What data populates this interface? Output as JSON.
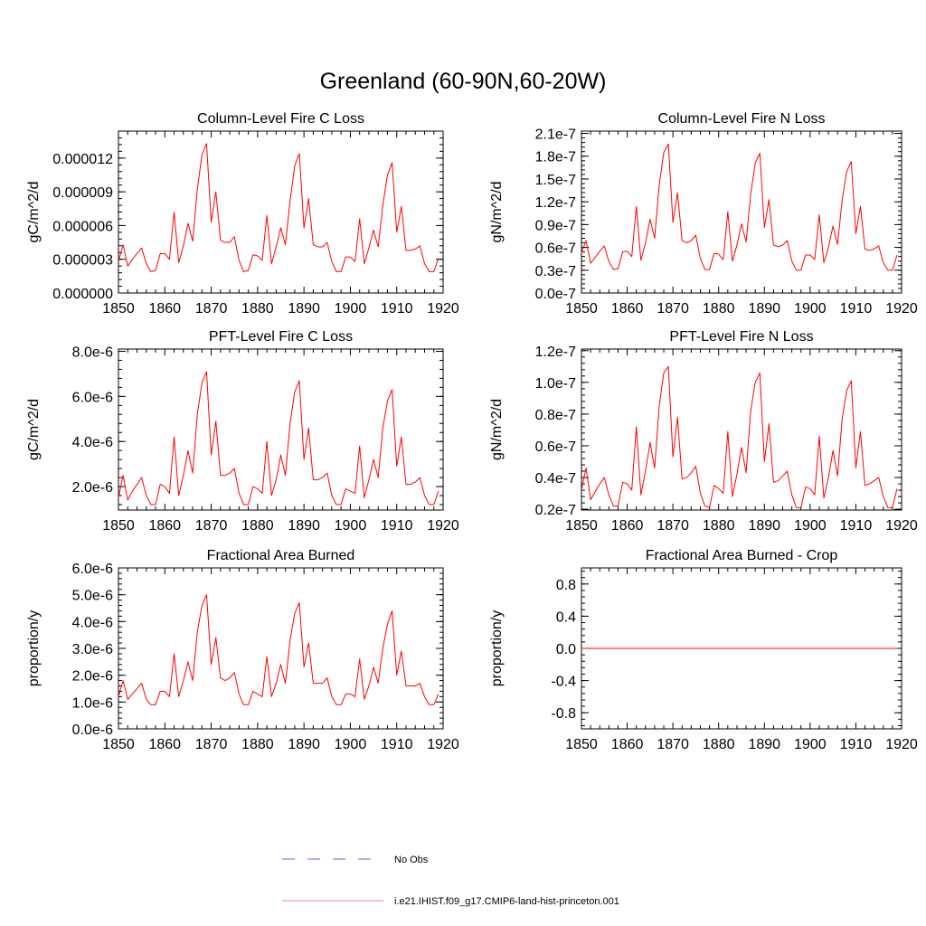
{
  "figure": {
    "title": "Greenland (60-90N,60-20W)",
    "legend": {
      "position": "bottom-center",
      "entries": [
        {
          "label": "No Obs",
          "color": "#6a6ad8",
          "dash": true
        },
        {
          "label": "i.e21.IHIST.f09_g17.CMIP6-land-hist-princeton.001",
          "color": "#f08080",
          "dash": false
        }
      ]
    }
  },
  "chart_data": [
    {
      "type": "line",
      "title": "Column-Level Fire C Loss",
      "ylabel": "gC/m^2/d",
      "xlim": [
        1850,
        1920
      ],
      "ylim": [
        0.0,
        1.44e-05
      ],
      "xticks": [
        1850,
        1860,
        1870,
        1880,
        1890,
        1900,
        1910,
        1920
      ],
      "xtick_labels": [
        "1850",
        "1860",
        "1870",
        "1880",
        "1890",
        "1900",
        "1910",
        "1920"
      ],
      "yticks": [
        0,
        3e-06,
        6e-06,
        9e-06,
        1.2e-05
      ],
      "ytick_labels": [
        "0.000000",
        "0.000003",
        "0.000006",
        "0.000009",
        "0.000012"
      ],
      "series": [
        {
          "color": "#ff0000",
          "x_start": 1850,
          "x_step": 1,
          "values": [
            2.8e-06,
            4.3e-06,
            2.4e-06,
            3e-06,
            3.5e-06,
            4e-06,
            2.6e-06,
            1.9e-06,
            2e-06,
            3.5e-06,
            3.5e-06,
            3e-06,
            7.2e-06,
            2.7e-06,
            4.2e-06,
            6.2e-06,
            4.6e-06,
            9.2e-06,
            1.23e-05,
            1.33e-05,
            6.3e-06,
            9e-06,
            4.7e-06,
            4.5e-06,
            4.5e-06,
            5e-06,
            2.9e-06,
            1.9e-06,
            2e-06,
            3.4e-06,
            3.3e-06,
            2.9e-06,
            6.9e-06,
            2.6e-06,
            4.1e-06,
            5.8e-06,
            4.3e-06,
            8.2e-06,
            1.13e-05,
            1.24e-05,
            5.8e-06,
            8.4e-06,
            4.3e-06,
            4.1e-06,
            4.1e-06,
            4.5e-06,
            2.8e-06,
            1.9e-06,
            1.9e-06,
            3.2e-06,
            3.2e-06,
            2.8e-06,
            6.6e-06,
            2.6e-06,
            4e-06,
            5.6e-06,
            4.1e-06,
            7.8e-06,
            1.05e-05,
            1.16e-05,
            5.4e-06,
            7.7e-06,
            3.8e-06,
            3.8e-06,
            3.9e-06,
            4.2e-06,
            2.6e-06,
            1.9e-06,
            1.9e-06,
            3.1e-06
          ]
        }
      ]
    },
    {
      "type": "line",
      "title": "Column-Level Fire N Loss",
      "ylabel": "gN/m^2/d",
      "xlim": [
        1850,
        1920
      ],
      "ylim": [
        0.0,
        2.13e-07
      ],
      "xticks": [
        1850,
        1860,
        1870,
        1880,
        1890,
        1900,
        1910,
        1920
      ],
      "xtick_labels": [
        "1850",
        "1860",
        "1870",
        "1880",
        "1890",
        "1900",
        "1910",
        "1920"
      ],
      "yticks": [
        0,
        3e-08,
        6e-08,
        9e-08,
        1.2e-07,
        1.5e-07,
        1.8e-07,
        2.1e-07
      ],
      "ytick_labels": [
        "0.0e-7",
        "0.3e-7",
        "0.6e-7",
        "0.9e-7",
        "1.2e-7",
        "1.5e-7",
        "1.8e-7",
        "2.1e-7"
      ],
      "series": [
        {
          "color": "#ff0000",
          "x_start": 1850,
          "x_step": 1,
          "values": [
            5.3e-08,
            6.9e-08,
            3.9e-08,
            4.7e-08,
            5.5e-08,
            6.2e-08,
            4.1e-08,
            3.1e-08,
            3.2e-08,
            5.4e-08,
            5.5e-08,
            4.8e-08,
            1.14e-07,
            4.3e-08,
            6.6e-08,
            9.7e-08,
            7.2e-08,
            1.42e-07,
            1.85e-07,
            1.96e-07,
            9.3e-08,
            1.32e-07,
            6.9e-08,
            6.6e-08,
            6.9e-08,
            7.6e-08,
            4.5e-08,
            3.1e-08,
            3.1e-08,
            5.2e-08,
            5.1e-08,
            4.4e-08,
            1.07e-07,
            4.2e-08,
            6.3e-08,
            9.1e-08,
            6.7e-08,
            1.3e-07,
            1.71e-07,
            1.84e-07,
            8.6e-08,
            1.23e-07,
            6.3e-08,
            6.1e-08,
            6.3e-08,
            6.9e-08,
            4.2e-08,
            3e-08,
            3e-08,
            5e-08,
            5e-08,
            4.4e-08,
            1.03e-07,
            4e-08,
            6e-08,
            8.8e-08,
            6.4e-08,
            1.22e-07,
            1.6e-07,
            1.73e-07,
            7.8e-08,
            1.14e-07,
            5.8e-08,
            5.6e-08,
            5.8e-08,
            6.2e-08,
            4e-08,
            3e-08,
            3e-08,
            5e-08
          ]
        }
      ]
    },
    {
      "type": "line",
      "title": "PFT-Level Fire C Loss",
      "ylabel": "gC/m^2/d",
      "xlim": [
        1850,
        1920
      ],
      "ylim": [
        9.6e-07,
        8.1e-06
      ],
      "xticks": [
        1850,
        1860,
        1870,
        1880,
        1890,
        1900,
        1910,
        1920
      ],
      "xtick_labels": [
        "1850",
        "1860",
        "1870",
        "1880",
        "1890",
        "1900",
        "1910",
        "1920"
      ],
      "yticks": [
        2e-06,
        4e-06,
        6e-06,
        8e-06
      ],
      "ytick_labels": [
        "2.0e-6",
        "4.0e-6",
        "6.0e-6",
        "8.0e-6"
      ],
      "series": [
        {
          "color": "#ff0000",
          "x_start": 1850,
          "x_step": 1,
          "values": [
            1.5e-06,
            2.5e-06,
            1.4e-06,
            1.8e-06,
            2.1e-06,
            2.4e-06,
            1.6e-06,
            1.2e-06,
            1.2e-06,
            2.1e-06,
            2e-06,
            1.7e-06,
            4.2e-06,
            1.6e-06,
            2.5e-06,
            3.6e-06,
            2.6e-06,
            5.2e-06,
            6.6e-06,
            7.1e-06,
            3.4e-06,
            4.9e-06,
            2.5e-06,
            2.5e-06,
            2.6e-06,
            2.8e-06,
            1.7e-06,
            1.2e-06,
            1.2e-06,
            2e-06,
            1.9e-06,
            1.7e-06,
            4e-06,
            1.6e-06,
            2.3e-06,
            3.4e-06,
            2.5e-06,
            4.8e-06,
            6.2e-06,
            6.7e-06,
            3.2e-06,
            4.6e-06,
            2.3e-06,
            2.3e-06,
            2.4e-06,
            2.6e-06,
            1.6e-06,
            1.2e-06,
            1.2e-06,
            1.9e-06,
            1.8e-06,
            1.7e-06,
            3.8e-06,
            1.5e-06,
            2.3e-06,
            3.2e-06,
            2.4e-06,
            4.6e-06,
            5.8e-06,
            6.3e-06,
            2.9e-06,
            4.2e-06,
            2.1e-06,
            2.1e-06,
            2.2e-06,
            2.4e-06,
            1.6e-06,
            1.2e-06,
            1.2e-06,
            1.8e-06
          ]
        }
      ]
    },
    {
      "type": "line",
      "title": "PFT-Level Fire N Loss",
      "ylabel": "gN/m^2/d",
      "xlim": [
        1850,
        1920
      ],
      "ylim": [
        1.95e-08,
        1.21e-07
      ],
      "xticks": [
        1850,
        1860,
        1870,
        1880,
        1890,
        1900,
        1910,
        1920
      ],
      "xtick_labels": [
        "1850",
        "1860",
        "1870",
        "1880",
        "1890",
        "1900",
        "1910",
        "1920"
      ],
      "yticks": [
        2e-08,
        4e-08,
        6e-08,
        8e-08,
        1e-07,
        1.2e-07
      ],
      "ytick_labels": [
        "0.2e-7",
        "0.4e-7",
        "0.6e-7",
        "0.8e-7",
        "1.0e-7",
        "1.2e-7"
      ],
      "series": [
        {
          "color": "#ff0000",
          "x_start": 1850,
          "x_step": 1,
          "values": [
            3.2e-08,
            4.6e-08,
            2.6e-08,
            3.1e-08,
            3.6e-08,
            4e-08,
            2.9e-08,
            2.2e-08,
            2.2e-08,
            3.7e-08,
            3.6e-08,
            3.2e-08,
            7.2e-08,
            2.9e-08,
            4.4e-08,
            6.2e-08,
            4.6e-08,
            8.5e-08,
            1.06e-07,
            1.1e-07,
            5.3e-08,
            7.8e-08,
            3.9e-08,
            4e-08,
            4.3e-08,
            4.7e-08,
            3e-08,
            2.2e-08,
            2.1e-08,
            3.5e-08,
            3.3e-08,
            3e-08,
            6.9e-08,
            2.8e-08,
            4.2e-08,
            5.9e-08,
            4.3e-08,
            8.2e-08,
            1e-07,
            1.06e-07,
            5e-08,
            7.4e-08,
            3.7e-08,
            3.8e-08,
            4.1e-08,
            4.4e-08,
            2.9e-08,
            2.1e-08,
            2.1e-08,
            3.4e-08,
            3.3e-08,
            2.9e-08,
            6.6e-08,
            2.7e-08,
            4e-08,
            5.7e-08,
            4.1e-08,
            7.7e-08,
            9.5e-08,
            1.01e-07,
            4.6e-08,
            6.9e-08,
            3.5e-08,
            3.6e-08,
            3.8e-08,
            4e-08,
            2.8e-08,
            2.1e-08,
            2.1e-08,
            3.3e-08
          ]
        }
      ]
    },
    {
      "type": "line",
      "title": "Fractional Area Burned",
      "ylabel": "proportion/y",
      "xlim": [
        1850,
        1920
      ],
      "ylim": [
        0.0,
        6e-06
      ],
      "xticks": [
        1850,
        1860,
        1870,
        1880,
        1890,
        1900,
        1910,
        1920
      ],
      "xtick_labels": [
        "1850",
        "1860",
        "1870",
        "1880",
        "1890",
        "1900",
        "1910",
        "1920"
      ],
      "yticks": [
        0,
        1e-06,
        2e-06,
        3e-06,
        4e-06,
        5e-06,
        6e-06
      ],
      "ytick_labels": [
        "0.0e-6",
        "1.0e-6",
        "2.0e-6",
        "3.0e-6",
        "4.0e-6",
        "5.0e-6",
        "6.0e-6"
      ],
      "series": [
        {
          "color": "#ff0000",
          "x_start": 1850,
          "x_step": 1,
          "values": [
            1.2e-06,
            1.8e-06,
            1.1e-06,
            1.3e-06,
            1.5e-06,
            1.7e-06,
            1.1e-06,
            9e-07,
            9e-07,
            1.4e-06,
            1.4e-06,
            1.2e-06,
            2.8e-06,
            1.2e-06,
            1.8e-06,
            2.5e-06,
            1.8e-06,
            3.6e-06,
            4.6e-06,
            5e-06,
            2.4e-06,
            3.4e-06,
            1.9e-06,
            1.8e-06,
            1.9e-06,
            2.1e-06,
            1.3e-06,
            9e-07,
            9e-07,
            1.4e-06,
            1.3e-06,
            1.2e-06,
            2.7e-06,
            1.2e-06,
            1.7e-06,
            2.4e-06,
            1.7e-06,
            3.3e-06,
            4.3e-06,
            4.7e-06,
            2.3e-06,
            3.2e-06,
            1.7e-06,
            1.7e-06,
            1.7e-06,
            1.9e-06,
            1.2e-06,
            9e-07,
            9e-07,
            1.3e-06,
            1.3e-06,
            1.2e-06,
            2.6e-06,
            1.1e-06,
            1.6e-06,
            2.3e-06,
            1.7e-06,
            3e-06,
            3.9e-06,
            4.4e-06,
            2e-06,
            2.9e-06,
            1.6e-06,
            1.6e-06,
            1.6e-06,
            1.7e-06,
            1.2e-06,
            9e-07,
            9e-07,
            1.3e-06
          ]
        }
      ]
    },
    {
      "type": "line",
      "title": "Fractional Area Burned - Crop",
      "ylabel": "proportion/y",
      "xlim": [
        1850,
        1920
      ],
      "ylim": [
        -1.0,
        1.0
      ],
      "xticks": [
        1850,
        1860,
        1870,
        1880,
        1890,
        1900,
        1910,
        1920
      ],
      "xtick_labels": [
        "1850",
        "1860",
        "1870",
        "1880",
        "1890",
        "1900",
        "1910",
        "1920"
      ],
      "yticks": [
        -0.8,
        -0.4,
        0.0,
        0.4,
        0.8
      ],
      "ytick_labels": [
        "-0.8",
        "-0.4",
        "0.0",
        "0.4",
        "0.8"
      ],
      "series": [
        {
          "color": "#ff0000",
          "x_start": 1850,
          "x_step": 1,
          "values": [
            0,
            0,
            0,
            0,
            0,
            0,
            0,
            0,
            0,
            0,
            0,
            0,
            0,
            0,
            0,
            0,
            0,
            0,
            0,
            0,
            0,
            0,
            0,
            0,
            0,
            0,
            0,
            0,
            0,
            0,
            0,
            0,
            0,
            0,
            0,
            0,
            0,
            0,
            0,
            0,
            0,
            0,
            0,
            0,
            0,
            0,
            0,
            0,
            0,
            0,
            0,
            0,
            0,
            0,
            0,
            0,
            0,
            0,
            0,
            0,
            0,
            0,
            0,
            0,
            0,
            0,
            0,
            0,
            0,
            0
          ]
        }
      ]
    }
  ]
}
